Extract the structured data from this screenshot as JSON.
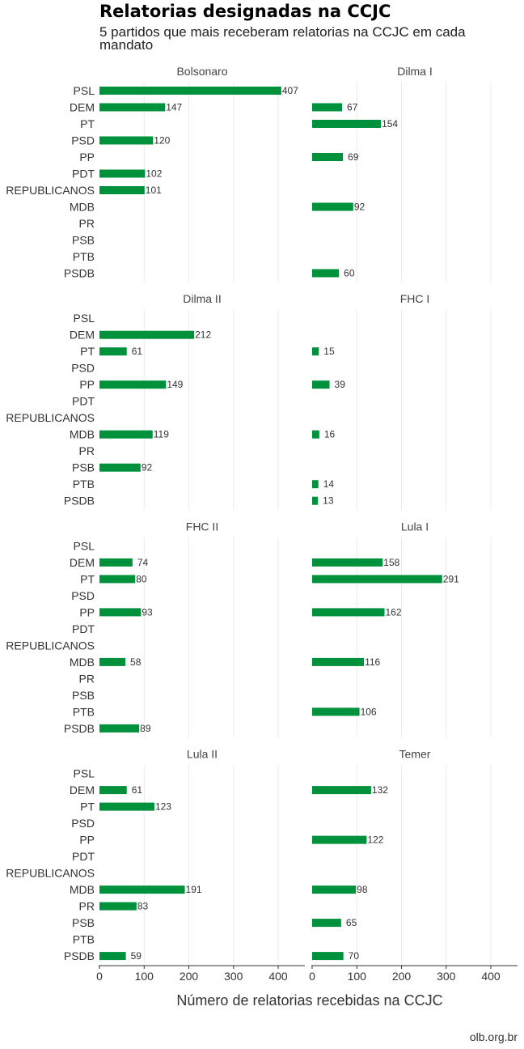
{
  "header": {
    "title": "Relatorias designadas na CCJC",
    "subtitle": "5 partidos que mais receberam relatorias na CCJC em cada mandato"
  },
  "source": "olb.org.br",
  "chart_data": {
    "type": "bar",
    "orientation": "horizontal",
    "categories": [
      "PSL",
      "DEM",
      "PT",
      "PSD",
      "PP",
      "PDT",
      "REPUBLICANOS",
      "MDB",
      "PR",
      "PSB",
      "PTB",
      "PSDB"
    ],
    "xlabel": "Número de relatorias recebidas na CCJC",
    "xticks": [
      0,
      100,
      200,
      300,
      400
    ],
    "xlim": [
      0,
      460
    ],
    "grid": true,
    "bar_color": "#00913c",
    "panels": [
      {
        "name": "Bolsonaro",
        "values": {
          "PSL": 407,
          "DEM": 147,
          "PSD": 120,
          "PDT": 102,
          "REPUBLICANOS": 101
        }
      },
      {
        "name": "Dilma I",
        "values": {
          "DEM": 67,
          "PT": 154,
          "PP": 69,
          "MDB": 92,
          "PSDB": 60
        }
      },
      {
        "name": "Dilma II",
        "values": {
          "DEM": 212,
          "PT": 61,
          "PP": 149,
          "MDB": 119,
          "PSB": 92
        }
      },
      {
        "name": "FHC I",
        "values": {
          "PT": 15,
          "PP": 39,
          "MDB": 16,
          "PTB": 14,
          "PSDB": 13
        }
      },
      {
        "name": "FHC II",
        "values": {
          "DEM": 74,
          "PT": 80,
          "PP": 93,
          "MDB": 58,
          "PSDB": 89
        }
      },
      {
        "name": "Lula I",
        "values": {
          "DEM": 158,
          "PT": 291,
          "PP": 162,
          "MDB": 116,
          "PTB": 106
        }
      },
      {
        "name": "Lula II",
        "values": {
          "DEM": 61,
          "PT": 123,
          "MDB": 191,
          "PR": 83,
          "PSDB": 59
        }
      },
      {
        "name": "Temer",
        "values": {
          "DEM": 132,
          "PP": 122,
          "MDB": 98,
          "PSB": 65,
          "PSDB": 70
        }
      }
    ]
  }
}
